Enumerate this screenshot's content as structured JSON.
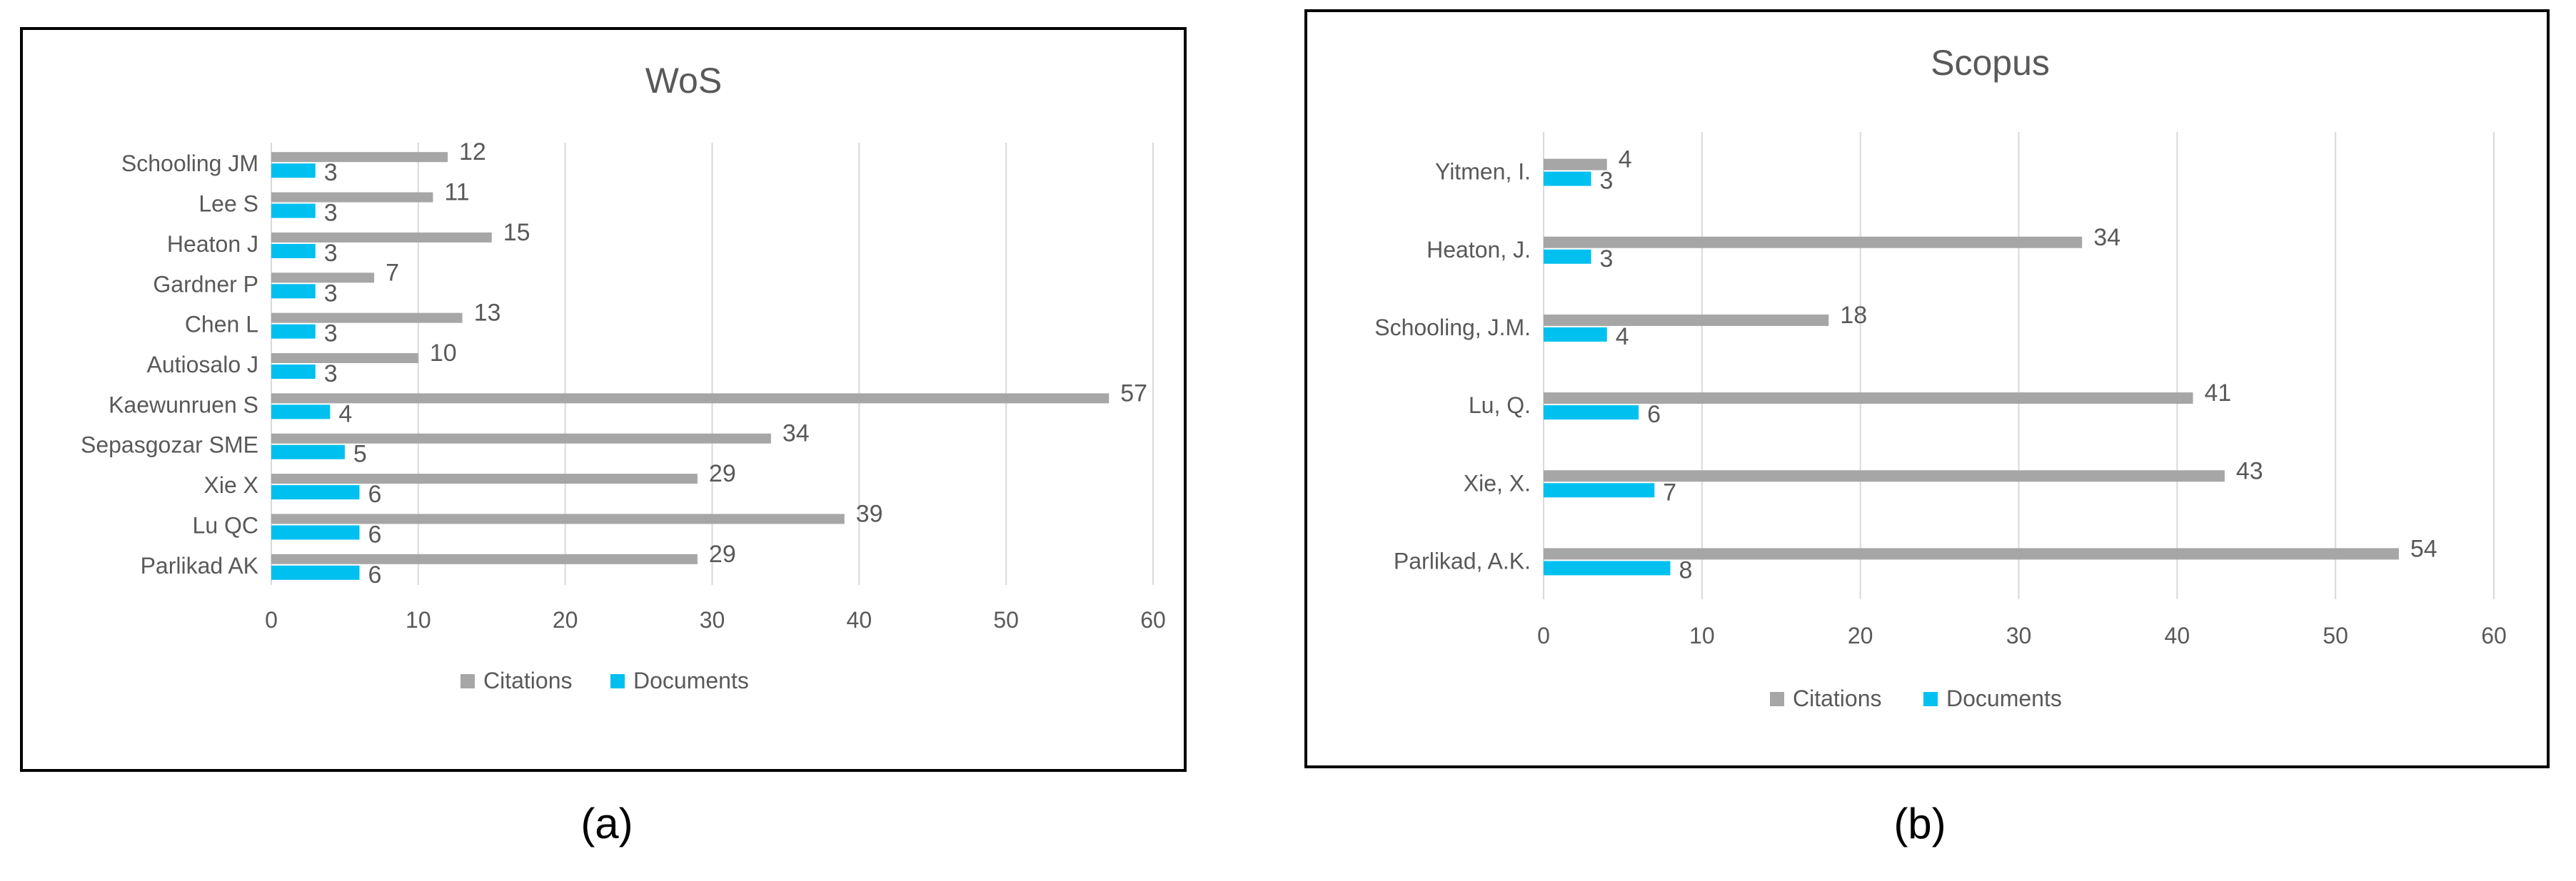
{
  "colors": {
    "citations": "#a6a6a6",
    "documents": "#00c0f0",
    "gridline": "#d9d9d9",
    "axis_text": "#595959",
    "frame": "#000000"
  },
  "chart_data": [
    {
      "type": "bar",
      "orientation": "horizontal",
      "panel_label": "(a)",
      "title": "WoS",
      "categories": [
        "Schooling JM",
        "Lee S",
        "Heaton J",
        "Gardner P",
        "Chen L",
        "Autiosalo J",
        "Kaewunruen S",
        "Sepasgozar SME",
        "Xie X",
        "Lu QC",
        "Parlikad AK"
      ],
      "series": [
        {
          "name": "Citations",
          "values": [
            12,
            11,
            15,
            7,
            13,
            10,
            57,
            34,
            29,
            39,
            29
          ]
        },
        {
          "name": "Documents",
          "values": [
            3,
            3,
            3,
            3,
            3,
            3,
            4,
            5,
            6,
            6,
            6
          ]
        }
      ],
      "xlim": [
        0,
        60
      ],
      "xticks": [
        0,
        10,
        20,
        30,
        40,
        50,
        60
      ],
      "grid": true,
      "legend": "bottom",
      "data_labels": true
    },
    {
      "type": "bar",
      "orientation": "horizontal",
      "panel_label": "(b)",
      "title": "Scopus",
      "categories": [
        "Yitmen, I.",
        "Heaton, J.",
        "Schooling, J.M.",
        "Lu, Q.",
        "Xie, X.",
        "Parlikad, A.K."
      ],
      "series": [
        {
          "name": "Citations",
          "values": [
            4,
            34,
            18,
            41,
            43,
            54
          ]
        },
        {
          "name": "Documents",
          "values": [
            3,
            3,
            4,
            6,
            7,
            8
          ]
        }
      ],
      "xlim": [
        0,
        60
      ],
      "xticks": [
        0,
        10,
        20,
        30,
        40,
        50,
        60
      ],
      "grid": true,
      "legend": "bottom",
      "data_labels": true
    }
  ]
}
